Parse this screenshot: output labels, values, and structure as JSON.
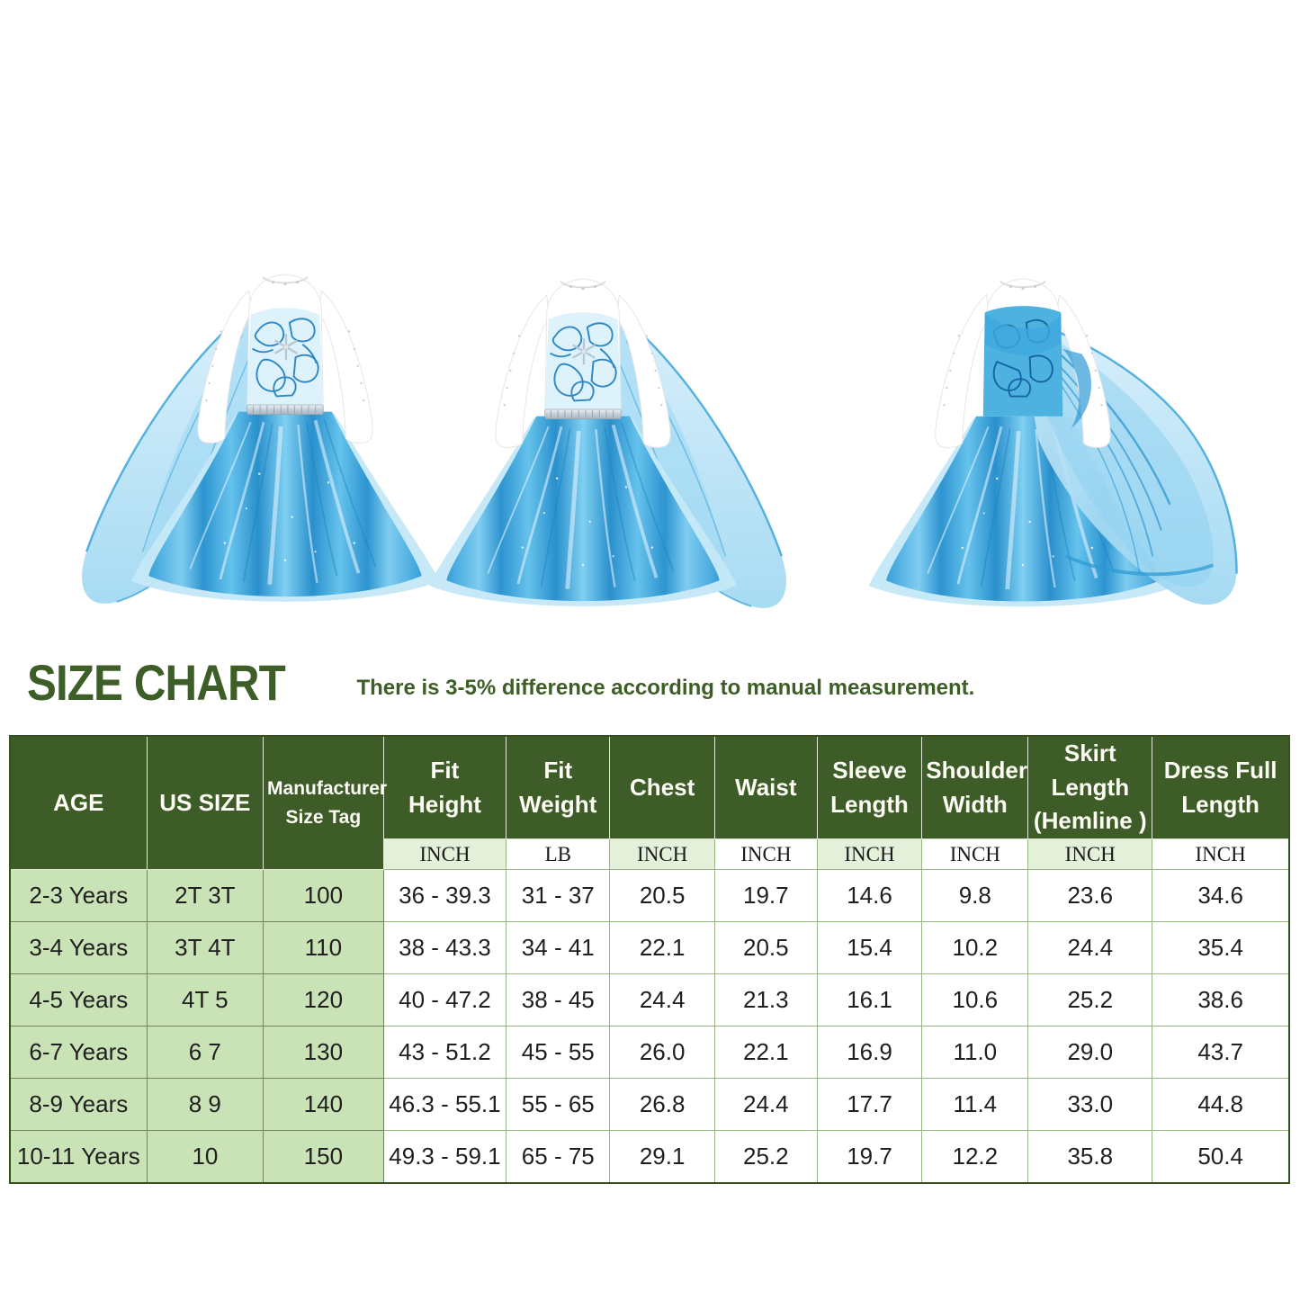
{
  "gallery": {
    "images": [
      {
        "label": "dress front view, cape flowing left"
      },
      {
        "label": "dress front view, cape flowing right"
      },
      {
        "label": "dress back view, cape flowing right"
      }
    ],
    "colors": {
      "skirt_blue": "#2f9ad6",
      "cape_blue": "#b5e0f5",
      "bodice_panel": "#def2fb",
      "floral_line": "#1b7dc0"
    }
  },
  "size_chart": {
    "title": "SIZE CHART",
    "note": "There is 3-5% difference according to manual measurement.",
    "colors": {
      "header_green": "#3e5c28",
      "title_green": "#3d5e27",
      "row_green": "#c9e3b6",
      "unit_green": "#e4f0da"
    },
    "table": {
      "headers": [
        "AGE",
        "US SIZE",
        "Manufacturer\nSize Tag",
        "Fit\nHeight",
        "Fit\nWeight",
        "Chest",
        "Waist",
        "Sleeve\nLength",
        "Shoulder\nWidth",
        "Skirt Length\n(Hemline )",
        "Dress Full\nLength"
      ],
      "units": [
        "INCH",
        "LB",
        "INCH",
        "INCH",
        "INCH",
        "INCH",
        "INCH",
        "INCH"
      ],
      "rows": [
        [
          "2-3 Years",
          "2T 3T",
          "100",
          "36 - 39.3",
          "31 - 37",
          "20.5",
          "19.7",
          "14.6",
          "9.8",
          "23.6",
          "34.6"
        ],
        [
          "3-4 Years",
          "3T 4T",
          "110",
          "38 - 43.3",
          "34 - 41",
          "22.1",
          "20.5",
          "15.4",
          "10.2",
          "24.4",
          "35.4"
        ],
        [
          "4-5 Years",
          "4T 5",
          "120",
          "40 - 47.2",
          "38 - 45",
          "24.4",
          "21.3",
          "16.1",
          "10.6",
          "25.2",
          "38.6"
        ],
        [
          "6-7 Years",
          "6 7",
          "130",
          "43 - 51.2",
          "45 - 55",
          "26.0",
          "22.1",
          "16.9",
          "11.0",
          "29.0",
          "43.7"
        ],
        [
          "8-9 Years",
          "8 9",
          "140",
          "46.3 - 55.1",
          "55 - 65",
          "26.8",
          "24.4",
          "17.7",
          "11.4",
          "33.0",
          "44.8"
        ],
        [
          "10-11 Years",
          "10",
          "150",
          "49.3 - 59.1",
          "65 - 75",
          "29.1",
          "25.2",
          "19.7",
          "12.2",
          "35.8",
          "50.4"
        ]
      ]
    }
  }
}
